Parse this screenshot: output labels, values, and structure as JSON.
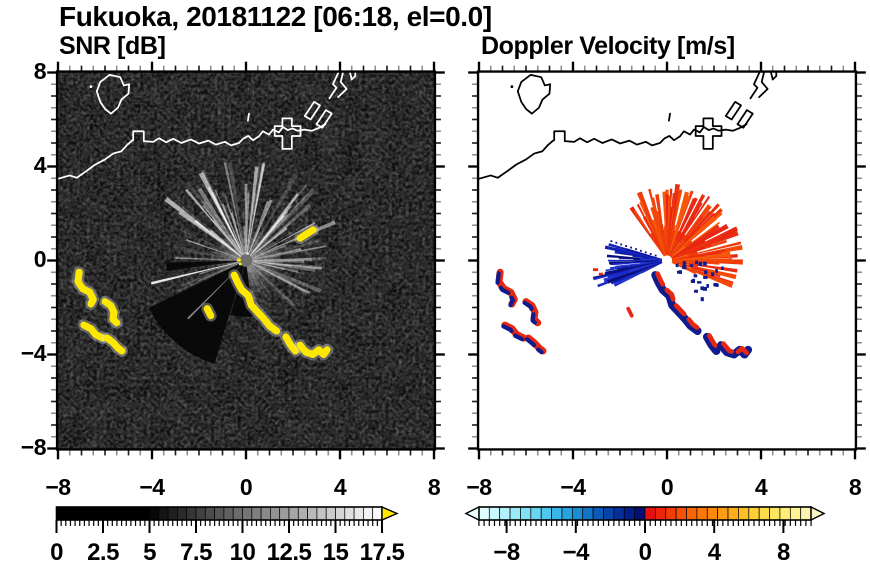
{
  "title": "Fukuoka, 20181122 [06:18, el=0.0]",
  "panels": {
    "snr": {
      "title": "SNR [dB]",
      "xtick_labels": [
        "−8",
        "−4",
        "0",
        "4",
        "8"
      ],
      "ytick_labels": [
        "8",
        "4",
        "0",
        "−4",
        "−8"
      ],
      "xtick_values": [
        -8,
        -4,
        0,
        4,
        8
      ],
      "ytick_values": [
        8,
        4,
        0,
        -4,
        -8
      ],
      "xlim": [
        -8,
        8
      ],
      "ylim": [
        -8,
        8
      ],
      "background": "#0a0a0a"
    },
    "vel": {
      "title": "Doppler Velocity [m/s]",
      "xtick_labels": [
        "−8",
        "−4",
        "0",
        "4",
        "8"
      ],
      "xtick_values": [
        -8,
        -4,
        0,
        4,
        8
      ],
      "xlim": [
        -8,
        8
      ],
      "ylim": [
        -8,
        8
      ],
      "background": "#ffffff"
    }
  },
  "colorbars": {
    "snr": {
      "tick_labels": [
        "0",
        "2.5",
        "5",
        "7.5",
        "10",
        "12.5",
        "15",
        "17.5"
      ],
      "tick_values": [
        0,
        2.5,
        5,
        7.5,
        10,
        12.5,
        15,
        17.5
      ],
      "vmin": 0,
      "vmax": 17.5,
      "segment": 0.5,
      "black_until": 5,
      "overflow_color": "#ffe800"
    },
    "vel": {
      "tick_labels": [
        "−8",
        "−4",
        "0",
        "4",
        "8"
      ],
      "tick_values": [
        -8,
        -4,
        0,
        4,
        8
      ],
      "vmin": -9.6,
      "vmax": 9.6,
      "segment": 0.6,
      "cold": [
        "#dffcfe",
        "#c9f7fd",
        "#b2f1fc",
        "#9aeafa",
        "#81e1f7",
        "#67d5f3",
        "#4ec7ee",
        "#38b6e7",
        "#26a3df",
        "#198dd4",
        "#1174c7",
        "#0c5bb8",
        "#0843a9",
        "#062f9b",
        "#041d8d",
        "#030e75"
      ],
      "warm": [
        "#e51010",
        "#ee2609",
        "#f43b06",
        "#f84f05",
        "#fb6305",
        "#fd7707",
        "#fe8a0b",
        "#fe9c12",
        "#feae1b",
        "#febf27",
        "#fecf36",
        "#fedd48",
        "#fee75e",
        "#feee78",
        "#fdf393",
        "#fbf5b1"
      ],
      "under_arrow": "#e9fcfe",
      "over_arrow": "#faf5c4"
    }
  },
  "chart_data": [
    {
      "type": "heatmap",
      "title": "SNR [dB]",
      "suptitle": "Fukuoka, 20181122 [06:18, el=0.0]",
      "xlim": [
        -8,
        8
      ],
      "ylim": [
        -8,
        8
      ],
      "xticks": [
        -8,
        -4,
        0,
        4,
        8
      ],
      "yticks": [
        -8,
        -4,
        0,
        4,
        8
      ],
      "minor_tick_step": 0.5,
      "colorbar_ticks": [
        0,
        2.5,
        5,
        7.5,
        10,
        12.5,
        15,
        17.5
      ],
      "colorbar_range": [
        0,
        17.5
      ],
      "colormap": "discrete grayscale black to white, yellow arrow = above max",
      "radar_site": [
        0,
        0
      ],
      "notes": "dark speckled noise field; bright radial beams fan from radar mainly N through NE; saturated yellow echo chains west (x -7.2..-5.3, y -0.5..-3.9) and along SE diagonal (x -0.5..3.5, y -0.6..-4.0); Hakata Bay coastline drawn in white"
    },
    {
      "type": "heatmap",
      "title": "Doppler Velocity [m/s]",
      "suptitle": "Fukuoka, 20181122 [06:18, el=0.0]",
      "xlim": [
        -8,
        8
      ],
      "ylim": [
        -8,
        8
      ],
      "xticks": [
        -8,
        -4,
        0,
        4,
        8
      ],
      "yticks": [
        -8,
        -4,
        0,
        4,
        8
      ],
      "minor_tick_step": 0.5,
      "colorbar_ticks": [
        -8,
        -4,
        0,
        4,
        8
      ],
      "colorbar_range": [
        -9.6,
        9.6
      ],
      "colormap": "diverging discrete: pale cyan to navy (negative), red to pale yellow (positive)",
      "radar_site": [
        0,
        0
      ],
      "notes": "white background; ragged red/orange fan (positive velocity) N-NE of radar to r≈3; dark blue wedge (negative) pointing W to r≈3.7; mottled navy+red echo chains matching SNR echoes; coastline drawn in black"
    }
  ],
  "features": {
    "coastline": {
      "island": [
        [
          -5.8,
          7.9
        ],
        [
          -5.35,
          7.8
        ],
        [
          -5.2,
          7.45
        ],
        [
          -4.97,
          7.5
        ],
        [
          -5.0,
          7.1
        ],
        [
          -5.3,
          6.85
        ],
        [
          -5.45,
          6.5
        ],
        [
          -5.75,
          6.25
        ],
        [
          -6.0,
          6.45
        ],
        [
          -6.2,
          6.75
        ],
        [
          -6.35,
          7.2
        ],
        [
          -6.2,
          7.6
        ]
      ],
      "island_dot": [
        -6.6,
        7.4
      ],
      "main": [
        [
          -8.1,
          3.45
        ],
        [
          -7.5,
          3.62
        ],
        [
          -7.2,
          3.52
        ],
        [
          -6.8,
          3.8
        ],
        [
          -6.42,
          4.08
        ],
        [
          -6.0,
          4.3
        ],
        [
          -5.65,
          4.55
        ],
        [
          -5.3,
          4.65
        ],
        [
          -5.05,
          4.93
        ],
        [
          -4.85,
          5.1
        ],
        [
          -4.8,
          5.12
        ],
        [
          -4.8,
          5.5
        ],
        [
          -4.35,
          5.5
        ],
        [
          -4.35,
          5.08
        ],
        [
          -3.95,
          5.05
        ],
        [
          -3.7,
          5.2
        ],
        [
          -3.4,
          5.03
        ],
        [
          -3.1,
          5.18
        ],
        [
          -2.75,
          5.0
        ],
        [
          -2.35,
          5.15
        ],
        [
          -2.0,
          4.98
        ],
        [
          -1.6,
          5.1
        ],
        [
          -1.28,
          4.93
        ],
        [
          -0.9,
          5.05
        ],
        [
          -0.64,
          4.9
        ],
        [
          -0.3,
          5.0
        ],
        [
          -0.1,
          5.2
        ],
        [
          0.1,
          5.3
        ],
        [
          0.3,
          5.12
        ],
        [
          0.55,
          5.28
        ],
        [
          0.72,
          5.5
        ],
        [
          0.98,
          5.36
        ],
        [
          1.15,
          5.57
        ],
        [
          1.4,
          5.45
        ],
        [
          1.57,
          5.68
        ],
        [
          1.78,
          5.55
        ],
        [
          1.98,
          5.62
        ],
        [
          2.2,
          5.52
        ],
        [
          2.5,
          5.57
        ],
        [
          2.8,
          5.52
        ],
        [
          3.1,
          5.64
        ],
        [
          3.38,
          5.8
        ]
      ],
      "pier_cross": [
        [
          1.55,
          4.75
        ],
        [
          1.55,
          5.3
        ],
        [
          1.22,
          5.3
        ],
        [
          1.22,
          5.72
        ],
        [
          1.55,
          5.72
        ],
        [
          1.55,
          6.05
        ],
        [
          1.95,
          6.05
        ],
        [
          1.95,
          5.72
        ],
        [
          2.32,
          5.72
        ],
        [
          2.32,
          5.3
        ],
        [
          1.95,
          5.3
        ],
        [
          1.95,
          4.75
        ]
      ],
      "slant1": [
        [
          2.5,
          6.15
        ],
        [
          2.9,
          6.75
        ],
        [
          3.15,
          6.6
        ],
        [
          2.75,
          6.0
        ]
      ],
      "slant2": [
        [
          3.0,
          5.8
        ],
        [
          3.4,
          6.4
        ],
        [
          3.65,
          6.25
        ],
        [
          3.25,
          5.65
        ]
      ],
      "slant3": [
        [
          3.55,
          6.9
        ],
        [
          3.85,
          7.35
        ],
        [
          3.7,
          7.5
        ],
        [
          3.98,
          8.1
        ]
      ],
      "slant4": [
        [
          4.15,
          8.1
        ],
        [
          4.03,
          7.6
        ],
        [
          4.28,
          7.3
        ],
        [
          3.92,
          6.95
        ]
      ],
      "top_piece": [
        [
          4.4,
          8.1
        ],
        [
          4.5,
          7.7
        ],
        [
          4.65,
          7.85
        ],
        [
          4.65,
          8.1
        ]
      ],
      "islet_tick": [
        [
          0.08,
          5.95
        ],
        [
          0.13,
          6.25
        ]
      ]
    },
    "echoes": {
      "W1": [
        [
          -7.1,
          -0.5
        ],
        [
          -7.15,
          -0.9
        ],
        [
          -6.95,
          -1.2
        ],
        [
          -6.65,
          -1.35
        ],
        [
          -6.5,
          -1.65
        ],
        [
          -6.6,
          -1.85
        ]
      ],
      "W2": [
        [
          -6.0,
          -1.75
        ],
        [
          -5.75,
          -1.92
        ],
        [
          -5.62,
          -2.2
        ],
        [
          -5.66,
          -2.5
        ],
        [
          -5.5,
          -2.65
        ]
      ],
      "W3a": [
        [
          -6.9,
          -2.75
        ],
        [
          -6.6,
          -2.9
        ],
        [
          -6.4,
          -3.15
        ],
        [
          -6.1,
          -3.3
        ]
      ],
      "W3b": [
        [
          -5.9,
          -3.3
        ],
        [
          -5.65,
          -3.5
        ],
        [
          -5.45,
          -3.72
        ],
        [
          -5.28,
          -3.85
        ]
      ],
      "C1": [
        [
          -0.5,
          -0.62
        ],
        [
          -0.35,
          -0.95
        ],
        [
          -0.18,
          -1.25
        ],
        [
          0.1,
          -1.5
        ],
        [
          0.22,
          -1.9
        ],
        [
          0.5,
          -2.2
        ],
        [
          0.78,
          -2.5
        ],
        [
          1.0,
          -2.78
        ],
        [
          1.3,
          -3.0
        ]
      ],
      "C2": [
        [
          1.7,
          -3.25
        ],
        [
          1.9,
          -3.6
        ],
        [
          2.1,
          -3.85
        ]
      ],
      "C3": [
        [
          2.3,
          -3.6
        ],
        [
          2.55,
          -3.9
        ],
        [
          2.85,
          -4.0
        ],
        [
          3.1,
          -3.8
        ],
        [
          3.3,
          -4.0
        ],
        [
          3.45,
          -3.8
        ]
      ],
      "D1": [
        [
          -1.65,
          -2.05
        ],
        [
          -1.5,
          -2.35
        ]
      ],
      "D2": [
        [
          2.3,
          0.95
        ],
        [
          2.85,
          1.3
        ]
      ]
    },
    "snr_fan": {
      "bright_sector_deg": [
        -60,
        80
      ],
      "dark_wedges_deg": [
        [
          173,
          196,
          2.4
        ],
        [
          197,
          244,
          4.6
        ],
        [
          262.5,
          268.5,
          3.4
        ]
      ],
      "feature_rays": [
        {
          "a": 256.5,
          "len": 4.15,
          "hw": 0.8,
          "op": 0.88
        },
        {
          "a": 225,
          "len": 3.5,
          "hw": 0.65,
          "op": 0.5
        },
        {
          "a": 247,
          "len": 2.2,
          "hw": 0.6,
          "op": 0.35
        },
        {
          "a": 96,
          "len": 3.25,
          "hw": 0.9,
          "op": 0.5
        },
        {
          "a": 117,
          "len": 3.05,
          "hw": 0.8,
          "op": 0.42
        },
        {
          "a": 289,
          "len": 2.7,
          "hw": 0.75,
          "op": 0.5
        },
        {
          "a": 272,
          "len": 3.0,
          "hw": 0.7,
          "op": 0.45
        }
      ]
    },
    "vel_fan": {
      "red_sector_deg": [
        -34,
        117
      ],
      "blue_sector_deg": [
        243,
        287
      ],
      "dotted_ray_deg": 288
    }
  },
  "style": {
    "ray_color": "#ffffff",
    "echo_color": "#ffe800",
    "echo_glow": "#e8e8e8",
    "navy": "#101c8e",
    "red": "#e62812",
    "orange": "#f97d12",
    "coast_snr": "#ffffff",
    "coast_vel": "#000000",
    "center_disc_snr": "#6f6f6f",
    "center_circle_vel": "#ffffff"
  }
}
